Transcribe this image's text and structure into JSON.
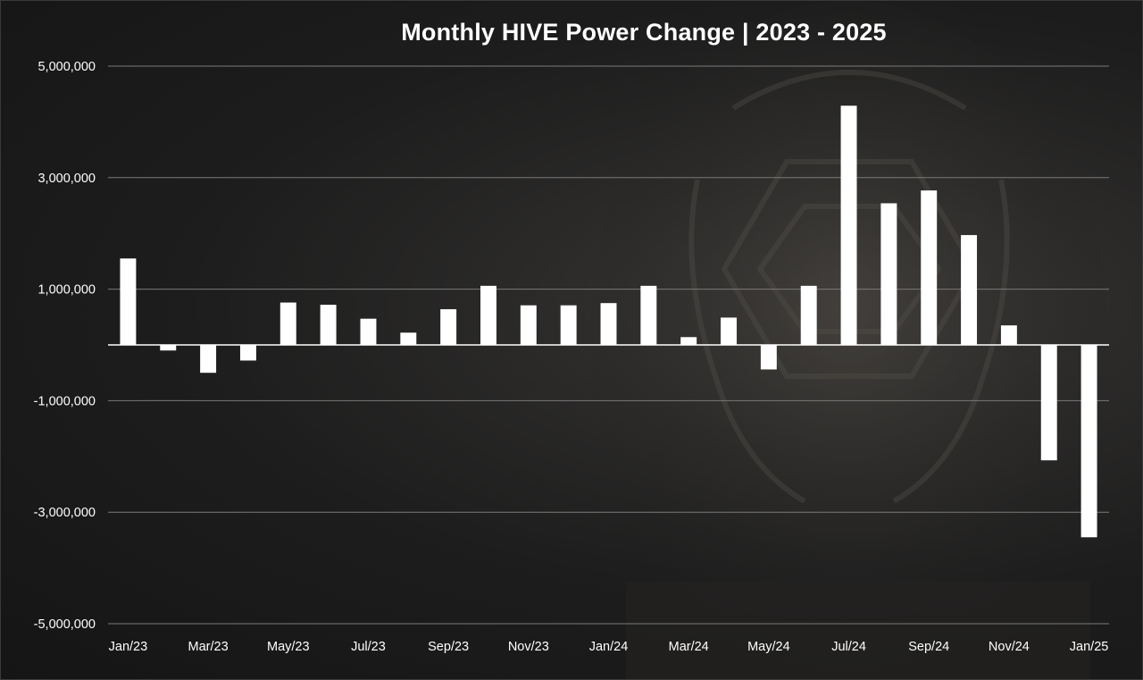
{
  "chart_data": {
    "type": "bar",
    "title": "Monthly HIVE Power Change | 2023 - 2025",
    "xlabel": "",
    "ylabel": "",
    "ylim": [
      -5000000,
      5000000
    ],
    "yticks": [
      5000000,
      3000000,
      1000000,
      -1000000,
      -3000000,
      -5000000
    ],
    "ytick_labels": [
      "5,000,000",
      "3,000,000",
      "1,000,000",
      "-1,000,000",
      "-3,000,000",
      "-5,000,000"
    ],
    "grid": true,
    "legend": "none",
    "bar_color": "#ffffff",
    "categories": [
      "Jan/23",
      "Feb/23",
      "Mar/23",
      "Apr/23",
      "May/23",
      "Jun/23",
      "Jul/23",
      "Aug/23",
      "Sep/23",
      "Oct/23",
      "Nov/23",
      "Dec/23",
      "Jan/24",
      "Feb/24",
      "Mar/24",
      "Apr/24",
      "May/24",
      "Jun/24",
      "Jul/24",
      "Aug/24",
      "Sep/24",
      "Oct/24",
      "Nov/24",
      "Dec/24",
      "Jan/25"
    ],
    "xtick_labels": [
      "Jan/23",
      "",
      "Mar/23",
      "",
      "May/23",
      "",
      "Jul/23",
      "",
      "Sep/23",
      "",
      "Nov/23",
      "",
      "Jan/24",
      "",
      "Mar/24",
      "",
      "May/24",
      "",
      "Jul/24",
      "",
      "Sep/24",
      "",
      "Nov/24",
      "",
      "Jan/25"
    ],
    "values": [
      1550000,
      -100000,
      -500000,
      -280000,
      760000,
      720000,
      470000,
      220000,
      640000,
      1060000,
      710000,
      710000,
      750000,
      1060000,
      140000,
      490000,
      -440000,
      1060000,
      4290000,
      2540000,
      2770000,
      1970000,
      350000,
      -2070000,
      -3450000
    ]
  }
}
